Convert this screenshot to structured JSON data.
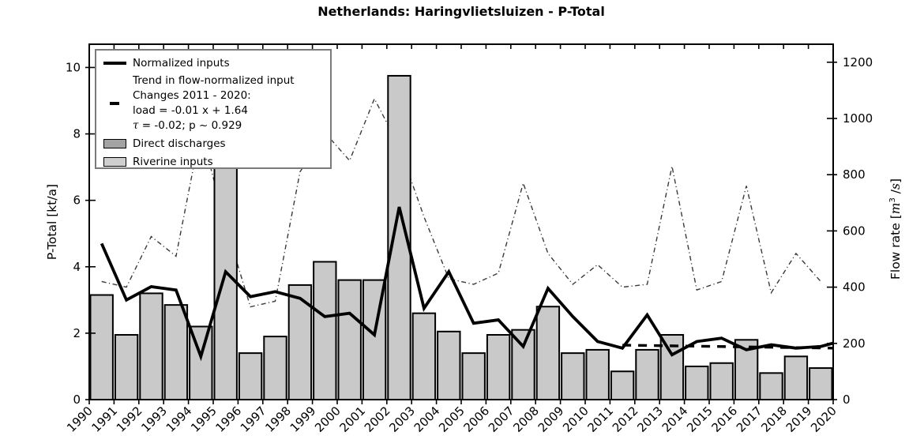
{
  "title": "Netherlands: Haringvlietsluizen - P-Total",
  "axes": {
    "left_label": "P-Total [kt/a]",
    "right_label_pre": "Flow rate [",
    "right_label_m": "m",
    "right_label_exp": "3",
    "right_label_mid": " /",
    "right_label_s": "s",
    "right_label_post": "]"
  },
  "legend": {
    "normalized": "Normalized inputs",
    "trend_line1": "Trend in flow-normalized input",
    "trend_line2": "Changes 2011 - 2020:",
    "trend_line3": "load = -0.01 x +  1.64",
    "trend_tau_sym": "τ",
    "trend_line4": " = -0.02; p ~ 0.929",
    "direct": "Direct discharges",
    "riverine": "Riverine inputs"
  },
  "colors": {
    "riverine": "#c9c9c9",
    "direct": "#a3a3a3",
    "normalized": "#000000",
    "trend": "#000000",
    "flow": "#3a3a3a",
    "axis": "#000000",
    "legend_border": "#7a7a7a"
  },
  "chart_data": {
    "type": "bar",
    "title": "Netherlands: Haringvlietsluizen - P-Total",
    "xlabel": "",
    "ylabel_left": "P-Total [kt/a]",
    "ylabel_right": "Flow rate [m^3/s]",
    "x_ticks": [
      1990,
      1991,
      1992,
      1993,
      1994,
      1995,
      1996,
      1997,
      1998,
      1999,
      2000,
      2001,
      2002,
      2003,
      2004,
      2005,
      2006,
      2007,
      2008,
      2009,
      2010,
      2011,
      2012,
      2013,
      2014,
      2015,
      2016,
      2017,
      2018,
      2019,
      2020
    ],
    "x_max": 2020,
    "ylim_left": [
      0,
      10.7
    ],
    "yticks_left": [
      0,
      2,
      4,
      6,
      8,
      10
    ],
    "ylim_right": [
      0,
      1264
    ],
    "yticks_right": [
      0,
      200,
      400,
      600,
      800,
      1000,
      1200
    ],
    "years": [
      1990,
      1991,
      1992,
      1993,
      1994,
      1995,
      1996,
      1997,
      1998,
      1999,
      2000,
      2001,
      2002,
      2003,
      2004,
      2005,
      2006,
      2007,
      2008,
      2009,
      2010,
      2011,
      2012,
      2013,
      2014,
      2015,
      2016,
      2017,
      2018,
      2019
    ],
    "riverine": {
      "name": "Riverine inputs",
      "unit": "kt/a",
      "values": [
        3.15,
        1.95,
        3.2,
        2.85,
        2.2,
        8.5,
        1.4,
        1.9,
        3.45,
        4.15,
        3.6,
        3.6,
        9.75,
        2.6,
        2.05,
        1.4,
        1.95,
        2.1,
        2.8,
        1.4,
        1.5,
        0.85,
        1.5,
        1.95,
        1.0,
        1.1,
        1.8,
        0.8,
        1.3,
        0.95
      ]
    },
    "direct_discharges": {
      "name": "Direct discharges",
      "unit": "kt/a",
      "values": [
        0,
        0,
        0,
        0,
        0,
        0,
        0,
        0,
        0,
        0,
        0,
        0,
        0,
        0,
        0,
        0,
        0,
        0,
        0,
        0,
        0,
        0,
        0,
        0,
        0,
        0,
        0,
        0,
        0,
        0
      ]
    },
    "normalized": {
      "name": "Normalized inputs",
      "unit": "kt/a",
      "values": [
        4.7,
        3.0,
        3.4,
        3.3,
        1.3,
        3.85,
        3.1,
        3.25,
        3.05,
        2.5,
        2.6,
        1.95,
        5.8,
        2.75,
        3.85,
        2.3,
        2.4,
        1.6,
        3.35,
        2.5,
        1.75,
        1.55,
        2.55,
        1.35,
        1.75,
        1.85,
        1.5,
        1.65,
        1.55,
        1.6
      ],
      "end_value": 1.7
    },
    "flow_rate": {
      "name": "Flow rate",
      "unit": "m^3/s",
      "axis": "right",
      "values": [
        420,
        400,
        580,
        510,
        960,
        620,
        330,
        350,
        810,
        950,
        850,
        1070,
        900,
        650,
        430,
        410,
        450,
        770,
        520,
        410,
        480,
        400,
        410,
        830,
        390,
        420,
        760,
        380,
        520,
        420
      ]
    },
    "trend": {
      "name": "Trend in flow-normalized input",
      "period": "2011 - 2020",
      "equation": "load = -0.01 x +  1.64",
      "slope": -0.01,
      "intercept": 1.64,
      "tau": -0.02,
      "p": 0.929,
      "start": 1.64,
      "end": 1.55
    },
    "legend_position": "upper left",
    "grid": false
  }
}
